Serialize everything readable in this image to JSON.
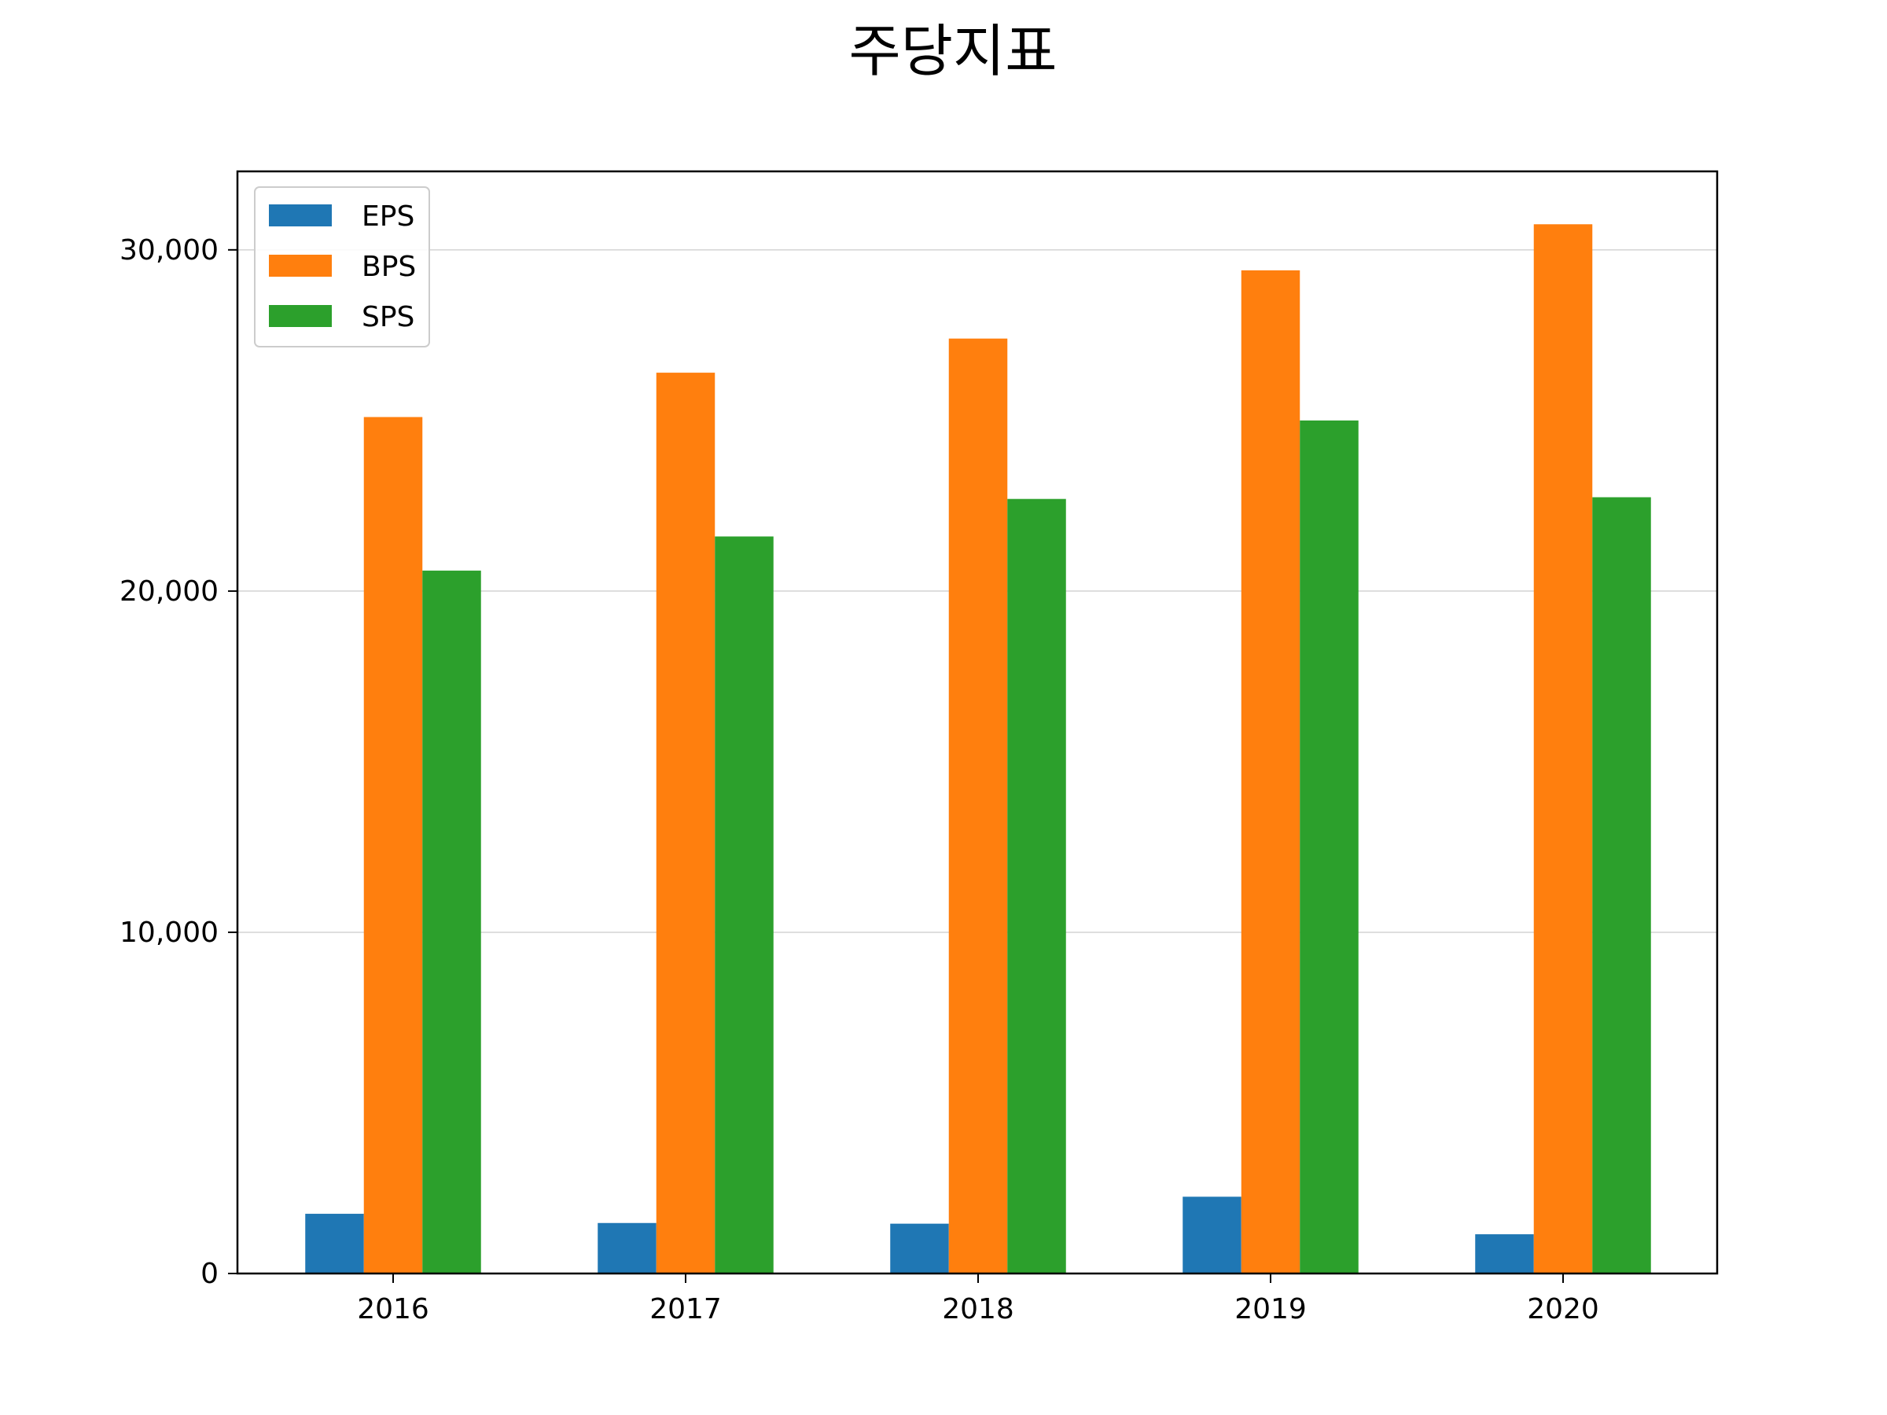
{
  "chart_data": {
    "type": "bar",
    "title": "주당지표",
    "xlabel": "",
    "ylabel": "",
    "categories": [
      "2016",
      "2017",
      "2018",
      "2019",
      "2020"
    ],
    "series": [
      {
        "name": "EPS",
        "color": "#1f77b4",
        "values": [
          1750,
          1480,
          1460,
          2250,
          1150
        ]
      },
      {
        "name": "BPS",
        "color": "#ff7f0e",
        "values": [
          25100,
          26400,
          27400,
          29400,
          30750
        ]
      },
      {
        "name": "SPS",
        "color": "#2ca02c",
        "values": [
          20600,
          21600,
          22700,
          25000,
          22750
        ]
      }
    ],
    "ylim": [
      0,
      32300
    ],
    "yticks": [
      0,
      10000,
      20000,
      30000
    ],
    "ytick_labels": [
      "0",
      "10,000",
      "20,000",
      "30,000"
    ],
    "grid": "horizontal",
    "legend": {
      "placement": "top-left",
      "entries": [
        "EPS",
        "BPS",
        "SPS"
      ]
    }
  }
}
